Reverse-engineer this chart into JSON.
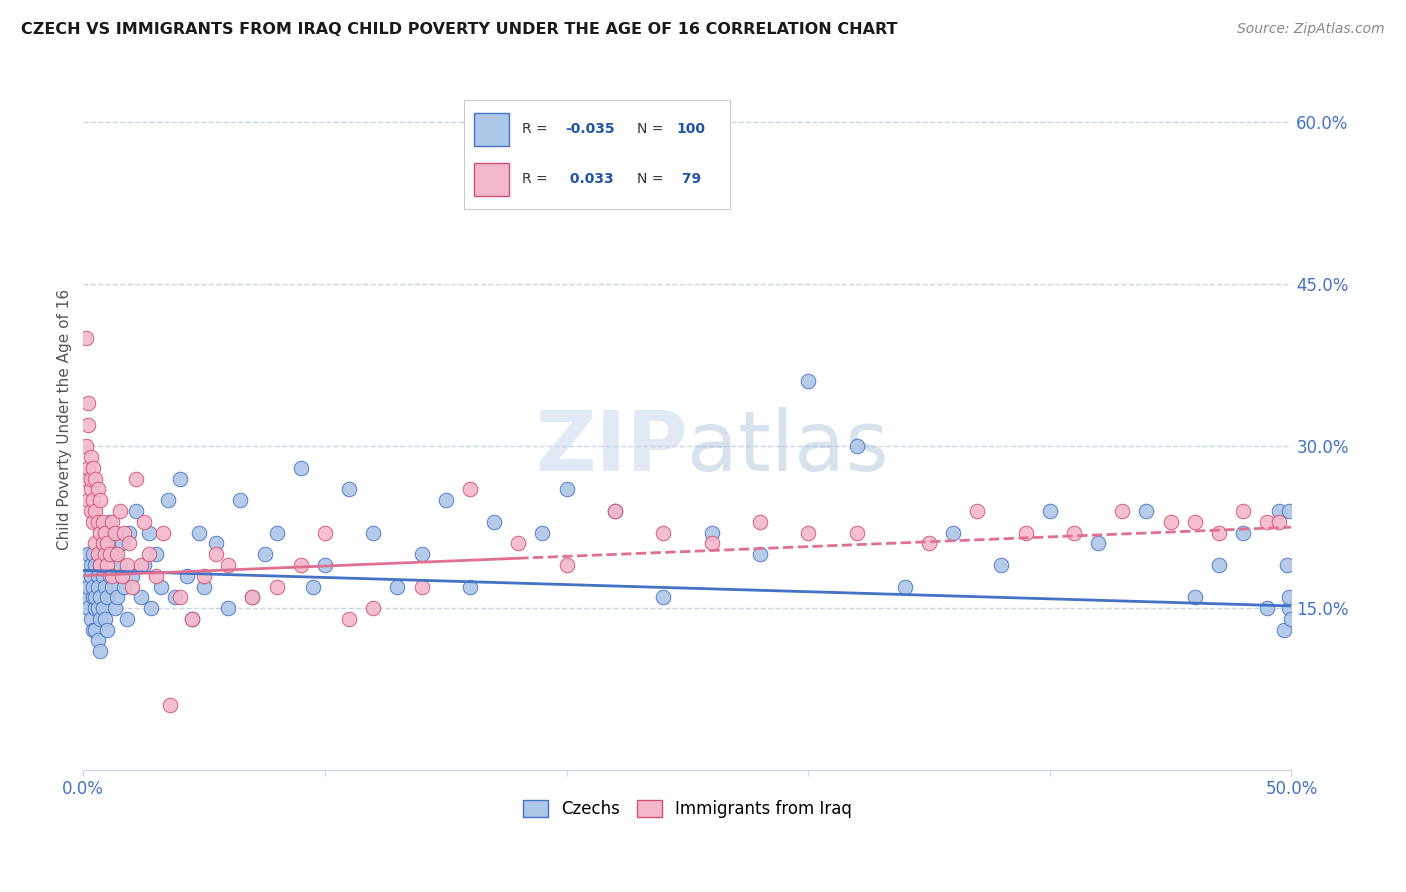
{
  "title": "CZECH VS IMMIGRANTS FROM IRAQ CHILD POVERTY UNDER THE AGE OF 16 CORRELATION CHART",
  "source": "Source: ZipAtlas.com",
  "ylabel": "Child Poverty Under the Age of 16",
  "xlim": [
    0.0,
    0.5
  ],
  "ylim": [
    0.0,
    0.65
  ],
  "czech_color": "#aec6e8",
  "czech_edge_color": "#4472c4",
  "iraq_color": "#f4b8cc",
  "iraq_edge_color": "#d05070",
  "czech_line_color": "#4472c4",
  "iraq_line_color": "#e07090",
  "grid_color": "#c8d4e8",
  "background_color": "#ffffff",
  "watermark": "ZIPatlas",
  "legend_r_czechs": "-0.035",
  "legend_n_czechs": "100",
  "legend_r_iraq": "0.033",
  "legend_n_iraq": "79",
  "czechs_x": [
    0.001,
    0.001,
    0.002,
    0.002,
    0.002,
    0.003,
    0.003,
    0.003,
    0.004,
    0.004,
    0.004,
    0.004,
    0.005,
    0.005,
    0.005,
    0.005,
    0.006,
    0.006,
    0.006,
    0.006,
    0.007,
    0.007,
    0.007,
    0.007,
    0.008,
    0.008,
    0.008,
    0.009,
    0.009,
    0.009,
    0.01,
    0.01,
    0.011,
    0.011,
    0.012,
    0.012,
    0.013,
    0.013,
    0.014,
    0.015,
    0.016,
    0.017,
    0.018,
    0.019,
    0.02,
    0.022,
    0.024,
    0.025,
    0.027,
    0.028,
    0.03,
    0.032,
    0.035,
    0.038,
    0.04,
    0.043,
    0.045,
    0.048,
    0.05,
    0.055,
    0.06,
    0.065,
    0.07,
    0.075,
    0.08,
    0.09,
    0.095,
    0.1,
    0.11,
    0.12,
    0.13,
    0.14,
    0.15,
    0.16,
    0.17,
    0.19,
    0.2,
    0.22,
    0.24,
    0.26,
    0.28,
    0.3,
    0.32,
    0.34,
    0.36,
    0.38,
    0.4,
    0.42,
    0.44,
    0.46,
    0.47,
    0.48,
    0.49,
    0.495,
    0.497,
    0.498,
    0.499,
    0.499,
    0.499,
    0.5
  ],
  "czechs_y": [
    0.18,
    0.16,
    0.2,
    0.15,
    0.17,
    0.19,
    0.14,
    0.18,
    0.16,
    0.2,
    0.13,
    0.17,
    0.15,
    0.19,
    0.13,
    0.16,
    0.18,
    0.12,
    0.17,
    0.15,
    0.19,
    0.14,
    0.16,
    0.11,
    0.2,
    0.15,
    0.18,
    0.14,
    0.17,
    0.21,
    0.16,
    0.13,
    0.18,
    0.23,
    0.17,
    0.22,
    0.15,
    0.2,
    0.16,
    0.19,
    0.21,
    0.17,
    0.14,
    0.22,
    0.18,
    0.24,
    0.16,
    0.19,
    0.22,
    0.15,
    0.2,
    0.17,
    0.25,
    0.16,
    0.27,
    0.18,
    0.14,
    0.22,
    0.17,
    0.21,
    0.15,
    0.25,
    0.16,
    0.2,
    0.22,
    0.28,
    0.17,
    0.19,
    0.26,
    0.22,
    0.17,
    0.2,
    0.25,
    0.17,
    0.23,
    0.22,
    0.26,
    0.24,
    0.16,
    0.22,
    0.2,
    0.36,
    0.3,
    0.17,
    0.22,
    0.19,
    0.24,
    0.21,
    0.24,
    0.16,
    0.19,
    0.22,
    0.15,
    0.24,
    0.13,
    0.19,
    0.15,
    0.16,
    0.24,
    0.14
  ],
  "iraq_x": [
    0.001,
    0.001,
    0.001,
    0.002,
    0.002,
    0.002,
    0.002,
    0.003,
    0.003,
    0.003,
    0.003,
    0.004,
    0.004,
    0.004,
    0.005,
    0.005,
    0.005,
    0.006,
    0.006,
    0.006,
    0.007,
    0.007,
    0.007,
    0.008,
    0.008,
    0.009,
    0.009,
    0.01,
    0.01,
    0.011,
    0.012,
    0.012,
    0.013,
    0.014,
    0.015,
    0.016,
    0.017,
    0.018,
    0.019,
    0.02,
    0.022,
    0.024,
    0.025,
    0.027,
    0.03,
    0.033,
    0.036,
    0.04,
    0.045,
    0.05,
    0.055,
    0.06,
    0.07,
    0.08,
    0.09,
    0.1,
    0.11,
    0.12,
    0.14,
    0.16,
    0.18,
    0.2,
    0.22,
    0.24,
    0.26,
    0.28,
    0.3,
    0.32,
    0.35,
    0.37,
    0.39,
    0.41,
    0.43,
    0.45,
    0.46,
    0.47,
    0.48,
    0.49,
    0.495
  ],
  "iraq_y": [
    0.4,
    0.3,
    0.27,
    0.34,
    0.28,
    0.25,
    0.32,
    0.26,
    0.29,
    0.24,
    0.27,
    0.23,
    0.25,
    0.28,
    0.24,
    0.21,
    0.27,
    0.23,
    0.2,
    0.26,
    0.22,
    0.25,
    0.19,
    0.21,
    0.23,
    0.2,
    0.22,
    0.19,
    0.21,
    0.2,
    0.23,
    0.18,
    0.22,
    0.2,
    0.24,
    0.18,
    0.22,
    0.19,
    0.21,
    0.17,
    0.27,
    0.19,
    0.23,
    0.2,
    0.18,
    0.22,
    0.06,
    0.16,
    0.14,
    0.18,
    0.2,
    0.19,
    0.16,
    0.17,
    0.19,
    0.22,
    0.14,
    0.15,
    0.17,
    0.26,
    0.21,
    0.19,
    0.24,
    0.22,
    0.21,
    0.23,
    0.22,
    0.22,
    0.21,
    0.24,
    0.22,
    0.22,
    0.24,
    0.23,
    0.23,
    0.22,
    0.24,
    0.23,
    0.23
  ]
}
